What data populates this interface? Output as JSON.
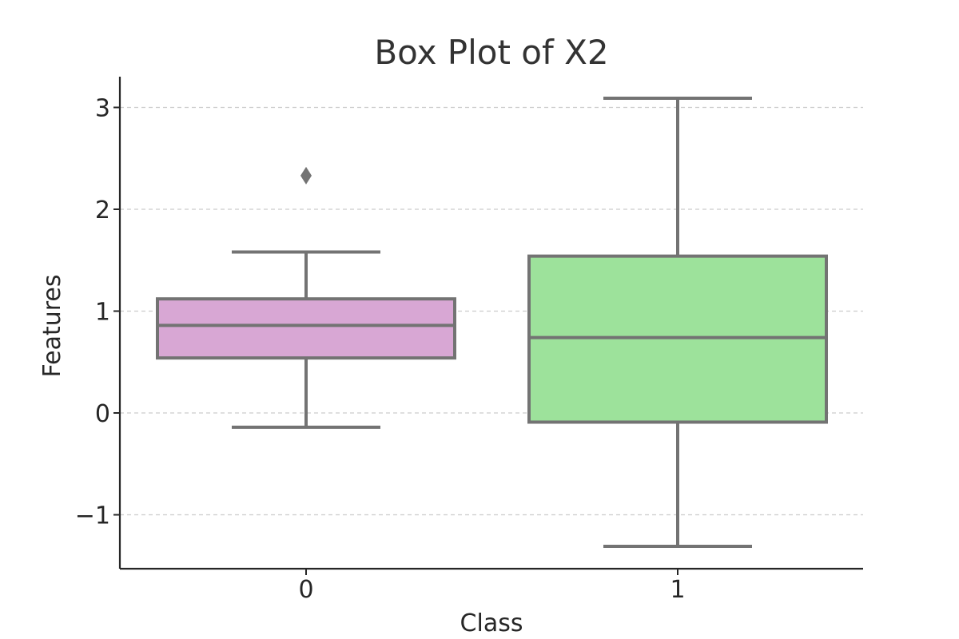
{
  "chart_data": {
    "type": "box",
    "title": "Box Plot of X2",
    "xlabel": "Class",
    "ylabel": "Features",
    "categories": [
      "0",
      "1"
    ],
    "y_ticks": [
      -1,
      0,
      1,
      2,
      3
    ],
    "y_tick_labels": [
      "−1",
      "0",
      "1",
      "2",
      "3"
    ],
    "ylim": [
      -1.53,
      3.3
    ],
    "grid": "y-dashed",
    "boxes": [
      {
        "category": "0",
        "whisker_low": -0.14,
        "q1": 0.54,
        "median": 0.86,
        "q3": 1.12,
        "whisker_high": 1.58,
        "outliers": [
          2.33
        ],
        "color": "#d8a7d4"
      },
      {
        "category": "1",
        "whisker_low": -1.31,
        "q1": -0.09,
        "median": 0.74,
        "q3": 1.54,
        "whisker_high": 3.09,
        "outliers": [],
        "color": "#9de29b"
      }
    ],
    "line_color": "#737373",
    "outlier_color": "#737373"
  }
}
